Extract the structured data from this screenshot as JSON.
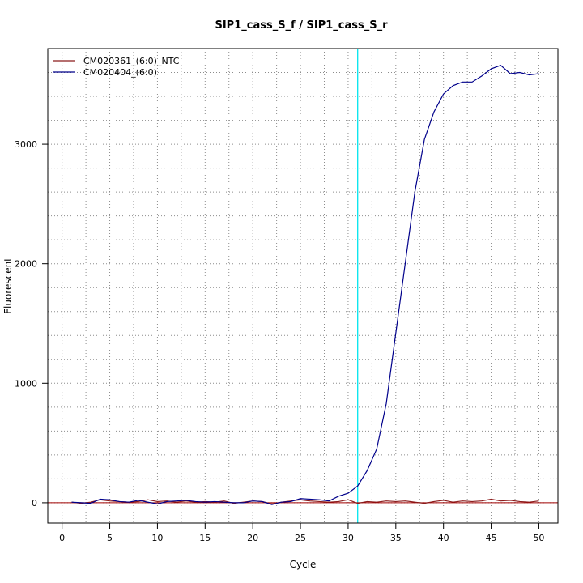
{
  "chart_data": {
    "type": "line",
    "title": "SIP1_cass_S_f / SIP1_cass_S_r",
    "xlabel": "Cycle",
    "ylabel": "Fluorescent",
    "xlim": [
      -1.5,
      52
    ],
    "ylim": [
      -170,
      3800
    ],
    "xticks": [
      0,
      5,
      10,
      15,
      20,
      25,
      30,
      35,
      40,
      45,
      50
    ],
    "yticks": [
      0,
      1000,
      2000,
      3000
    ],
    "grid": true,
    "grid_style": "dotted",
    "x_gridlines": [
      0,
      2.5,
      5,
      7.5,
      10,
      12.5,
      15,
      17.5,
      20,
      22.5,
      25,
      27.5,
      30,
      32.5,
      35,
      37.5,
      40,
      42.5,
      45,
      47.5,
      50
    ],
    "y_gridlines": [
      -200,
      0,
      200,
      400,
      600,
      800,
      1000,
      1200,
      1400,
      1600,
      1800,
      2000,
      2200,
      2400,
      2600,
      2800,
      3000,
      3200,
      3400,
      3600
    ],
    "legend_position": "top-left",
    "threshold": {
      "x": 31,
      "color": "#00e5ee"
    },
    "zero_line_color": "#a00000",
    "series": [
      {
        "name": "CM020361_(6:0)_NTC",
        "color": "#8b1a1a",
        "x": [
          1,
          2,
          3,
          4,
          5,
          6,
          7,
          8,
          9,
          10,
          11,
          12,
          13,
          14,
          15,
          16,
          17,
          18,
          19,
          20,
          21,
          22,
          23,
          24,
          25,
          26,
          27,
          28,
          29,
          30,
          31,
          32,
          33,
          34,
          35,
          36,
          37,
          38,
          39,
          40,
          41,
          42,
          43,
          44,
          45,
          46,
          47,
          48,
          49,
          50
        ],
        "values": [
          5,
          -5,
          5,
          25,
          15,
          10,
          5,
          10,
          25,
          10,
          15,
          5,
          15,
          5,
          10,
          5,
          15,
          -5,
          5,
          15,
          10,
          -10,
          5,
          15,
          25,
          15,
          10,
          5,
          10,
          25,
          -5,
          10,
          5,
          15,
          10,
          15,
          5,
          -5,
          10,
          20,
          5,
          15,
          10,
          15,
          30,
          15,
          20,
          10,
          5,
          15
        ]
      },
      {
        "name": "CM020404_(6:0)",
        "color": "#00008b",
        "x": [
          1,
          2,
          3,
          4,
          5,
          6,
          7,
          8,
          9,
          10,
          11,
          12,
          13,
          14,
          15,
          16,
          17,
          18,
          19,
          20,
          21,
          22,
          23,
          24,
          25,
          26,
          27,
          28,
          29,
          30,
          31,
          32,
          33,
          34,
          35,
          36,
          37,
          38,
          39,
          40,
          41,
          42,
          43,
          44,
          45,
          46,
          47,
          48,
          49,
          50
        ],
        "values": [
          5,
          0,
          -5,
          30,
          25,
          10,
          5,
          20,
          5,
          -10,
          10,
          15,
          20,
          10,
          5,
          10,
          5,
          0,
          0,
          15,
          10,
          -15,
          5,
          10,
          35,
          30,
          25,
          15,
          55,
          80,
          140,
          270,
          450,
          830,
          1420,
          2010,
          2600,
          3040,
          3270,
          3420,
          3490,
          3520,
          3520,
          3570,
          3630,
          3660,
          3590,
          3600,
          3580,
          3590
        ]
      }
    ]
  }
}
